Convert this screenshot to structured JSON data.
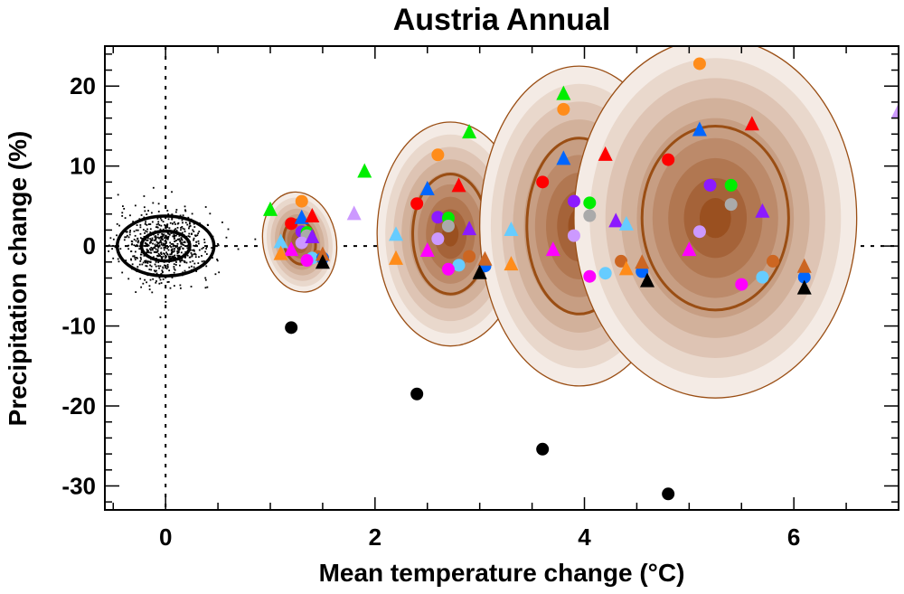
{
  "chart_data": {
    "type": "scatter",
    "title": "Austria Annual",
    "xlabel": "Mean temperature change (°C)",
    "ylabel": "Precipitation change (%)",
    "xlim": [
      -0.58,
      7.0
    ],
    "ylim": [
      -33,
      25
    ],
    "xticks": [
      0,
      2,
      4,
      6
    ],
    "yticks": [
      -30,
      -20,
      -10,
      0,
      10,
      20
    ],
    "x_tick_labels": [
      "0",
      "2",
      "4",
      "6"
    ],
    "y_tick_labels": [
      "-30",
      "-20",
      "-10",
      "0",
      "10",
      "20"
    ],
    "reference_lines": {
      "x": 0,
      "y": 0,
      "style": "dotted"
    },
    "colors": {
      "ellipse_outline": "#9a4e14",
      "band_light": "#f4ebe5",
      "band_dark": "#9a5020",
      "natural_variability": "#000000"
    },
    "natural_variability": {
      "center": [
        0,
        0
      ],
      "sd": [
        0.22,
        2.2
      ],
      "contours": [
        1,
        2
      ]
    },
    "distributions": [
      {
        "name": "period-1",
        "center": [
          1.28,
          0.5
        ],
        "semi_axes": [
          0.35,
          6.3
        ],
        "inner_semi_axes": [
          0.15,
          2.8
        ],
        "rotation": -10
      },
      {
        "name": "period-2",
        "center": [
          2.72,
          1.5
        ],
        "semi_axes": [
          0.7,
          14.0
        ],
        "inner_semi_axes": [
          0.36,
          7.5
        ],
        "rotation": 0
      },
      {
        "name": "period-3",
        "center": [
          3.95,
          2.5
        ],
        "semi_axes": [
          0.95,
          20.0
        ],
        "inner_semi_axes": [
          0.5,
          11.0
        ],
        "rotation": 0
      },
      {
        "name": "period-4",
        "center": [
          5.25,
          3.5
        ],
        "semi_axes": [
          1.35,
          22.5
        ],
        "inner_semi_axes": [
          0.7,
          11.5
        ],
        "rotation": 0
      }
    ],
    "series": [
      {
        "name": "black-circle",
        "marker": "circle",
        "color": "#000000",
        "points": [
          [
            1.2,
            -10.2
          ],
          [
            2.4,
            -18.5
          ],
          [
            3.6,
            -25.4
          ],
          [
            4.8,
            -31.0
          ]
        ]
      },
      {
        "name": "orange-circle",
        "marker": "circle",
        "color": "#ff8c1a",
        "points": [
          [
            1.3,
            5.6
          ],
          [
            2.6,
            11.4
          ],
          [
            3.8,
            17.1
          ],
          [
            5.1,
            22.8
          ]
        ]
      },
      {
        "name": "red-circle",
        "marker": "circle",
        "color": "#ff0000",
        "points": [
          [
            1.2,
            2.8
          ],
          [
            2.4,
            5.3
          ],
          [
            3.6,
            8.0
          ],
          [
            4.8,
            10.8
          ]
        ]
      },
      {
        "name": "purple-circle",
        "marker": "circle",
        "color": "#8c1aff",
        "points": [
          [
            1.3,
            1.8
          ],
          [
            2.6,
            3.6
          ],
          [
            3.9,
            5.6
          ],
          [
            5.2,
            7.6
          ]
        ]
      },
      {
        "name": "green-circle",
        "marker": "circle",
        "color": "#00ee00",
        "points": [
          [
            1.35,
            1.7
          ],
          [
            2.7,
            3.5
          ],
          [
            4.05,
            5.4
          ],
          [
            5.4,
            7.6
          ]
        ]
      },
      {
        "name": "gray-circle",
        "marker": "circle",
        "color": "#aaaaaa",
        "points": [
          [
            1.35,
            1.3
          ],
          [
            2.7,
            2.5
          ],
          [
            4.05,
            3.8
          ],
          [
            5.4,
            5.2
          ]
        ]
      },
      {
        "name": "lavender-circle",
        "marker": "circle",
        "color": "#cc99ff",
        "points": [
          [
            1.3,
            0.4
          ],
          [
            2.6,
            0.9
          ],
          [
            3.9,
            1.3
          ],
          [
            5.1,
            1.8
          ]
        ]
      },
      {
        "name": "brown-circle",
        "marker": "circle",
        "color": "#cc6622",
        "points": [
          [
            1.45,
            -1.3
          ],
          [
            2.9,
            -1.3
          ],
          [
            4.35,
            -1.9
          ],
          [
            5.8,
            -1.9
          ]
        ]
      },
      {
        "name": "cyan-circle",
        "marker": "circle",
        "color": "#66ccff",
        "points": [
          [
            1.4,
            -1.5
          ],
          [
            2.8,
            -2.4
          ],
          [
            4.2,
            -3.4
          ],
          [
            5.7,
            -3.9
          ]
        ]
      },
      {
        "name": "magenta-circle",
        "marker": "circle",
        "color": "#ff00ff",
        "points": [
          [
            1.35,
            -1.8
          ],
          [
            2.7,
            -2.9
          ],
          [
            4.05,
            -3.8
          ],
          [
            5.5,
            -4.8
          ]
        ]
      },
      {
        "name": "blue-circle",
        "marker": "circle",
        "color": "#0066ff",
        "points": [
          [
            1.5,
            -1.5
          ],
          [
            3.05,
            -2.5
          ],
          [
            4.55,
            -3.2
          ],
          [
            6.1,
            -3.9
          ]
        ]
      },
      {
        "name": "green-triangle",
        "marker": "triangle",
        "color": "#00ee00",
        "points": [
          [
            1.0,
            4.6
          ],
          [
            1.9,
            9.4
          ],
          [
            2.9,
            14.3
          ],
          [
            3.8,
            19.1
          ]
        ]
      },
      {
        "name": "lavender-triangle",
        "marker": "triangle",
        "color": "#cc99ff",
        "points": [
          [
            1.8,
            4.1
          ],
          [
            7.0,
            16.9
          ]
        ]
      },
      {
        "name": "blue-triangle",
        "marker": "triangle",
        "color": "#0066ff",
        "points": [
          [
            1.3,
            3.6
          ],
          [
            2.5,
            7.2
          ],
          [
            3.8,
            11.0
          ],
          [
            5.1,
            14.6
          ]
        ]
      },
      {
        "name": "red-triangle",
        "marker": "triangle",
        "color": "#ff0000",
        "points": [
          [
            1.4,
            3.8
          ],
          [
            2.8,
            7.6
          ],
          [
            4.2,
            11.5
          ],
          [
            5.6,
            15.3
          ]
        ]
      },
      {
        "name": "purple-triangle",
        "marker": "triangle",
        "color": "#8c1aff",
        "points": [
          [
            1.4,
            1.2
          ],
          [
            2.9,
            2.2
          ],
          [
            4.3,
            3.2
          ],
          [
            5.7,
            4.4
          ]
        ]
      },
      {
        "name": "cyan-triangle",
        "marker": "triangle",
        "color": "#66ccff",
        "points": [
          [
            1.1,
            0.6
          ],
          [
            2.2,
            1.5
          ],
          [
            3.3,
            2.1
          ],
          [
            4.4,
            2.8
          ]
        ]
      },
      {
        "name": "magenta-triangle",
        "marker": "triangle",
        "color": "#ff00ff",
        "points": [
          [
            1.2,
            -0.4
          ],
          [
            2.5,
            -0.5
          ],
          [
            3.7,
            -0.4
          ],
          [
            5.0,
            -0.4
          ]
        ]
      },
      {
        "name": "orange-triangle",
        "marker": "triangle",
        "color": "#ff8c1a",
        "points": [
          [
            1.1,
            -0.9
          ],
          [
            2.2,
            -1.5
          ],
          [
            3.3,
            -2.2
          ],
          [
            4.4,
            -2.8
          ]
        ]
      },
      {
        "name": "brown-triangle",
        "marker": "triangle",
        "color": "#cc6622",
        "points": [
          [
            1.5,
            -1.0
          ],
          [
            3.05,
            -1.6
          ],
          [
            4.55,
            -2.0
          ],
          [
            6.1,
            -2.5
          ]
        ]
      },
      {
        "name": "black-triangle",
        "marker": "triangle",
        "color": "#000000",
        "points": [
          [
            1.5,
            -2.0
          ],
          [
            3.0,
            -3.3
          ],
          [
            4.6,
            -4.3
          ],
          [
            6.1,
            -5.2
          ]
        ]
      }
    ]
  }
}
